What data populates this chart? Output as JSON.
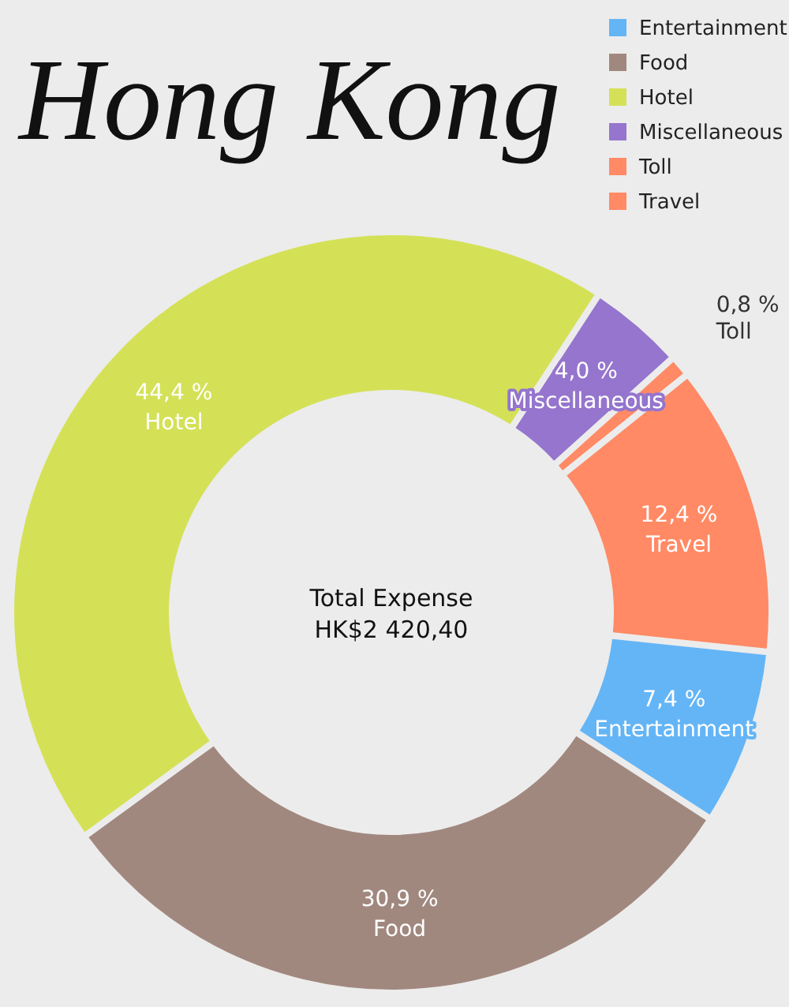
{
  "chart_data": {
    "type": "donut",
    "title": "Hong Kong",
    "categories": [
      "Entertainment",
      "Food",
      "Hotel",
      "Miscellaneous",
      "Toll",
      "Travel"
    ],
    "values": [
      7.4,
      30.9,
      44.4,
      4.0,
      0.8,
      12.4
    ],
    "colors": [
      "#64b5f6",
      "#a1887f",
      "#d4e157",
      "#9575cd",
      "#ff8a65",
      "#ff8a65"
    ],
    "value_labels": [
      "7,4 %",
      "30,9 %",
      "44,4 %",
      "4,0 %",
      "0,8 %",
      "12,4 %"
    ],
    "annotations": [
      "Total Expense",
      "HK$2 420,40"
    ],
    "legend": "top right"
  }
}
